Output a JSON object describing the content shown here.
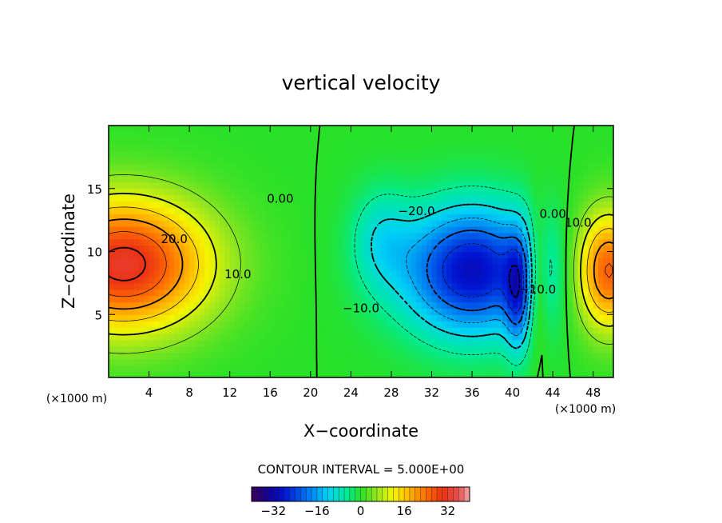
{
  "chart_data": {
    "type": "heatmap",
    "title": "vertical velocity",
    "xlabel": "X−coordinate",
    "ylabel": "Z−coordinate",
    "x_unit": "(×1000 m)",
    "y_unit": "(×1000 m)",
    "xlim": [
      0,
      50
    ],
    "ylim": [
      0,
      20
    ],
    "xticks": [
      4,
      8,
      12,
      16,
      20,
      24,
      28,
      32,
      36,
      40,
      44,
      48
    ],
    "yticks": [
      5,
      10,
      15
    ],
    "contour_interval_text": "CONTOUR INTERVAL = 5.000E+00",
    "contour_labels": [
      {
        "text": "20.0",
        "x": 6.5,
        "z": 11.0
      },
      {
        "text": "10.0",
        "x": 12.8,
        "z": 8.2
      },
      {
        "text": "0.00",
        "x": 17.0,
        "z": 14.2
      },
      {
        "text": "−20.0",
        "x": 30.5,
        "z": 13.2
      },
      {
        "text": "−10.0",
        "x": 25.0,
        "z": 5.5
      },
      {
        "text": "−10.0",
        "x": 42.5,
        "z": 7.0
      },
      {
        "text": "0.00",
        "x": 44.0,
        "z": 13.0
      },
      {
        "text": "10.0",
        "x": 46.5,
        "z": 12.3
      }
    ],
    "field_extrema": [
      {
        "kind": "max",
        "x": 1.5,
        "z": 9.0,
        "value": 32
      },
      {
        "kind": "min",
        "x": 36.0,
        "z": 8.5,
        "value": -30
      },
      {
        "kind": "max",
        "x": 49.5,
        "z": 8.5,
        "value": 26
      }
    ],
    "colorbar": {
      "range": [
        -40,
        40
      ],
      "ticks": [
        -32,
        -16,
        0,
        16,
        32
      ],
      "tick_labels": [
        "−32",
        "−16",
        "0",
        "16",
        "32"
      ]
    }
  }
}
